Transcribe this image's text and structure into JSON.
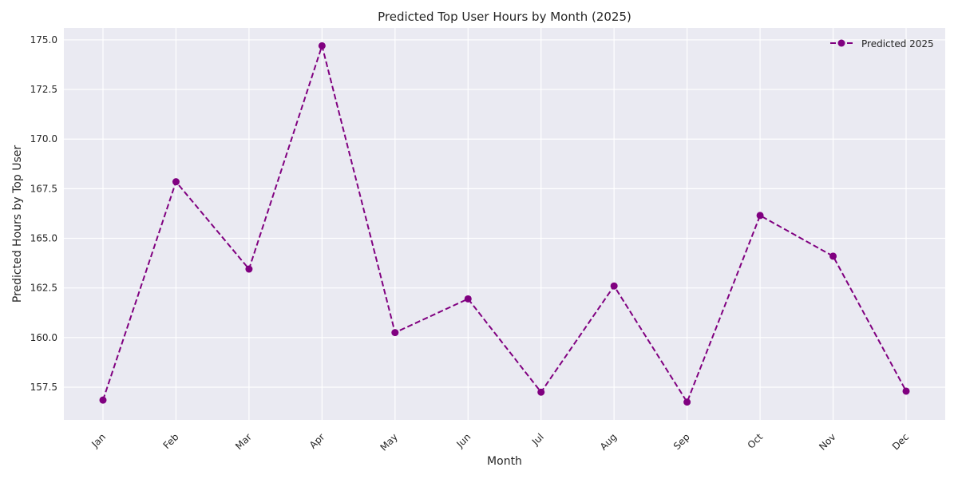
{
  "chart_data": {
    "type": "line",
    "title": "Predicted Top User Hours by Month (2025)",
    "xlabel": "Month",
    "ylabel": "Predicted Hours by Top User",
    "categories": [
      "Jan",
      "Feb",
      "Mar",
      "Apr",
      "May",
      "Jun",
      "Jul",
      "Aug",
      "Sep",
      "Oct",
      "Nov",
      "Dec"
    ],
    "series": [
      {
        "name": "Predicted 2025",
        "values": [
          156.85,
          167.85,
          163.45,
          174.7,
          160.25,
          161.95,
          157.25,
          162.6,
          156.75,
          166.15,
          164.1,
          157.3
        ],
        "color": "#800080",
        "line_style": "dashed",
        "marker": "circle"
      }
    ],
    "ylim": [
      155.85,
      175.6
    ],
    "yticks": [
      157.5,
      160.0,
      162.5,
      165.0,
      167.5,
      170.0,
      172.5,
      175.0
    ],
    "ytick_labels": [
      "157.5",
      "160.0",
      "162.5",
      "165.0",
      "167.5",
      "170.0",
      "172.5",
      "175.0"
    ],
    "grid": true,
    "legend_position": "top-right",
    "background_color": "#eaeaf2",
    "grid_color": "#ffffff"
  }
}
